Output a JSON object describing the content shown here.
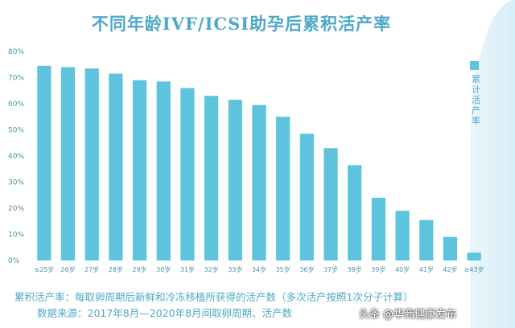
{
  "chart_data": {
    "type": "bar",
    "title": "不同年龄IVF/ICSI助孕后累积活产率",
    "categories": [
      "≤25岁",
      "26岁",
      "27岁",
      "28岁",
      "29岁",
      "30岁",
      "31岁",
      "32岁",
      "33岁",
      "34岁",
      "35岁",
      "36岁",
      "37岁",
      "38岁",
      "39岁",
      "40岁",
      "41岁",
      "42岁",
      "≥43岁"
    ],
    "series": [
      {
        "name": "累计活产率",
        "values": [
          74.5,
          74,
          73.5,
          71.5,
          69,
          68.5,
          66,
          63,
          61.5,
          59.5,
          55,
          48.5,
          43,
          36.5,
          24,
          19,
          15.5,
          9,
          3
        ]
      }
    ],
    "y_ticks": [
      "0%",
      "10%",
      "20%",
      "30%",
      "40%",
      "50%",
      "60%",
      "70%",
      "80%"
    ],
    "ylim": [
      0,
      80
    ],
    "xlabel": "",
    "ylabel": "",
    "grid": false,
    "legend_position": "right",
    "bar_color": "#5ec3dd"
  },
  "notes": {
    "line1": "累积活产率：每取卵周期后新鲜和冷冻移植所获得的活产数（多次活产按照1次分子计算）",
    "line2": "数据来源：2017年8月—2020年8月间取卵周期、活产数"
  },
  "watermark": "头条 @华商健康发布"
}
